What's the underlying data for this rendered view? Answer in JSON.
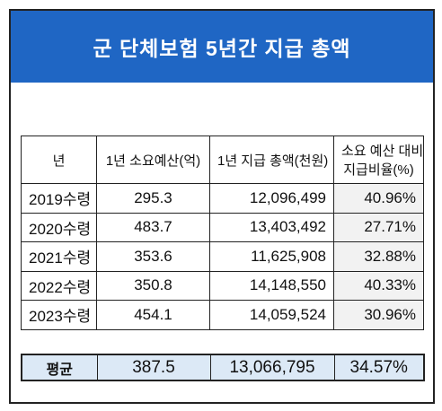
{
  "header": {
    "title": "군 단체보험 5년간 지급 총액"
  },
  "table": {
    "columns": [
      "년",
      "1년 소요예산(억)",
      "1년 지급 총액(천원)",
      [
        "소요 예산 대비",
        "지급비율(%)"
      ]
    ],
    "rows": [
      [
        "2019수령",
        "295.3",
        "12,096,499",
        "40.96%"
      ],
      [
        "2020수령",
        "483.7",
        "13,403,492",
        "27.71%"
      ],
      [
        "2021수령",
        "353.6",
        "11,625,908",
        "32.88%"
      ],
      [
        "2022수령",
        "350.8",
        "14,148,550",
        "40.33%"
      ],
      [
        "2023수령",
        "454.1",
        "14,059,524",
        "30.96%"
      ]
    ],
    "average": [
      "평균",
      "387.5",
      "13,066,795",
      "34.57%"
    ]
  }
}
